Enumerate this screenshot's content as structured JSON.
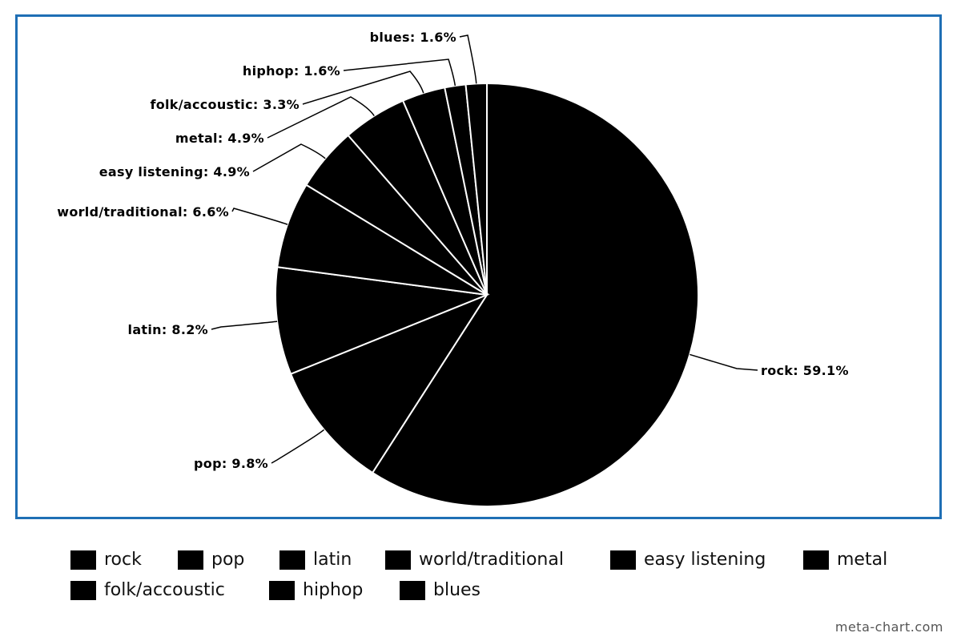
{
  "chart_data": {
    "type": "pie",
    "title": "",
    "slices": [
      {
        "label": "rock",
        "value": 59.1,
        "display": "rock: 59.1%"
      },
      {
        "label": "pop",
        "value": 9.8,
        "display": "pop: 9.8%"
      },
      {
        "label": "latin",
        "value": 8.2,
        "display": "latin: 8.2%"
      },
      {
        "label": "world/traditional",
        "value": 6.6,
        "display": "world/traditional: 6.6%"
      },
      {
        "label": "easy listening",
        "value": 4.9,
        "display": "easy listening: 4.9%"
      },
      {
        "label": "metal",
        "value": 4.9,
        "display": "metal: 4.9%"
      },
      {
        "label": "folk/accoustic",
        "value": 3.3,
        "display": "folk/accoustic: 3.3%"
      },
      {
        "label": "hiphop",
        "value": 1.6,
        "display": "hiphop: 1.6%"
      },
      {
        "label": "blues",
        "value": 1.6,
        "display": "blues: 1.6%"
      }
    ],
    "slice_color": "#000000",
    "slice_border_color": "#ffffff",
    "frame_color": "#1f6fb5",
    "legend_placement": "bottom"
  },
  "legend": {
    "items": [
      "rock",
      "pop",
      "latin",
      "world/traditional",
      "easy listening",
      "metal",
      "folk/accoustic",
      "hiphop",
      "blues"
    ]
  },
  "watermark": "meta-chart.com"
}
